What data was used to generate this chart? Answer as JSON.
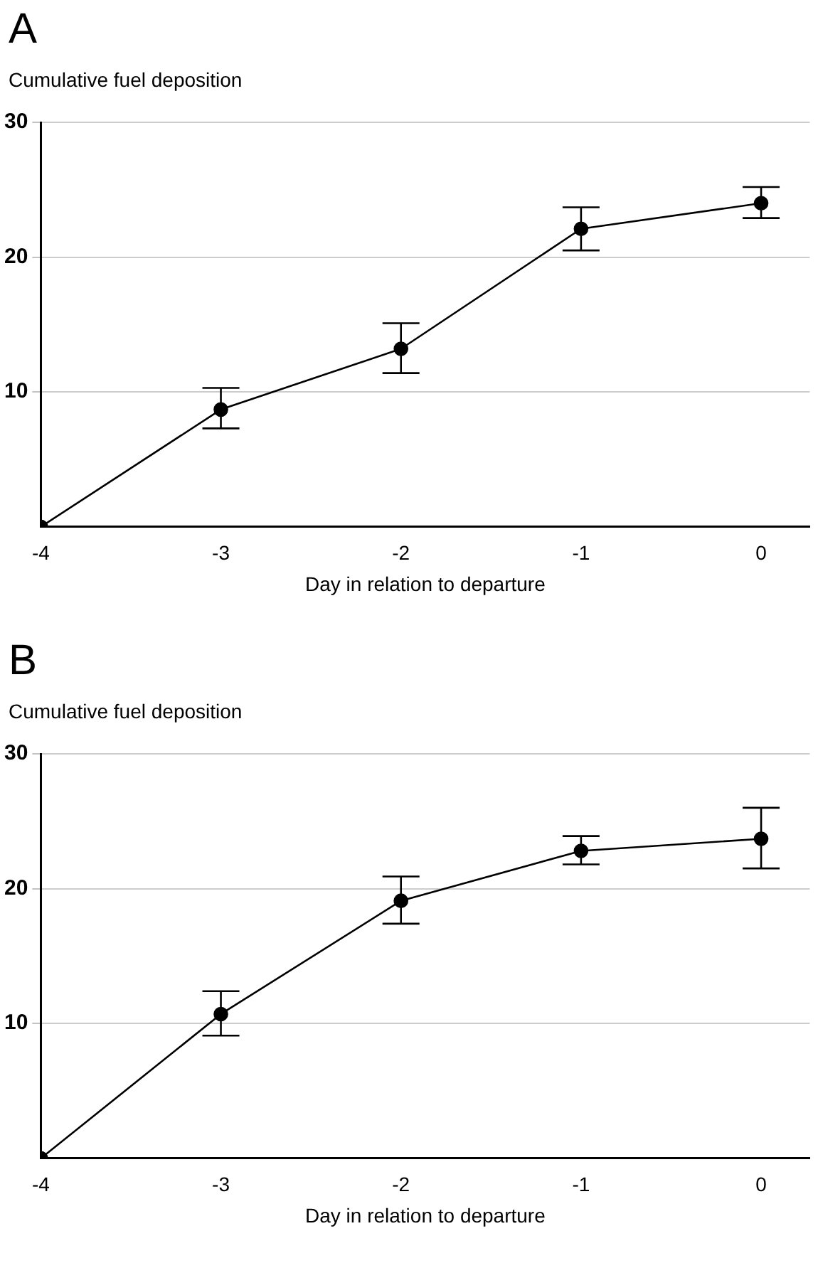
{
  "chart_data": [
    {
      "type": "line",
      "title": "A",
      "ylabel": "Cumulative fuel deposition",
      "xlabel": "Day in relation to departure",
      "x": [
        -4,
        -3,
        -2,
        -1,
        0
      ],
      "series": [
        {
          "color": "#000000",
          "values": [
            0,
            8.7,
            13.2,
            22.1,
            24.0
          ],
          "errors": [
            null,
            [
              7.3,
              10.3
            ],
            [
              11.4,
              15.1
            ],
            [
              20.5,
              23.7
            ],
            [
              22.9,
              25.2
            ]
          ]
        }
      ],
      "xlim": [
        -4,
        0.27
      ],
      "xticks": [
        -4,
        -3,
        -2,
        -1,
        0
      ],
      "ylim": [
        0,
        30
      ],
      "yticks": [
        10,
        20,
        30
      ],
      "grid": "y",
      "legend": false,
      "marker": "circle",
      "line_style": "solid"
    },
    {
      "type": "line",
      "title": "B",
      "ylabel": "Cumulative fuel deposition",
      "xlabel": "Day in relation to departure",
      "x": [
        -4,
        -3,
        -2,
        -1,
        0
      ],
      "series": [
        {
          "color": "#000000",
          "values": [
            0,
            10.7,
            19.1,
            22.8,
            23.7
          ],
          "errors": [
            null,
            [
              9.1,
              12.4
            ],
            [
              17.4,
              20.9
            ],
            [
              21.8,
              23.9
            ],
            [
              21.5,
              26.0
            ]
          ]
        }
      ],
      "xlim": [
        -4,
        0.27
      ],
      "xticks": [
        -4,
        -3,
        -2,
        -1,
        0
      ],
      "ylim": [
        0,
        30
      ],
      "yticks": [
        10,
        20,
        30
      ],
      "grid": "y",
      "legend": false,
      "marker": "circle",
      "line_style": "solid"
    }
  ]
}
